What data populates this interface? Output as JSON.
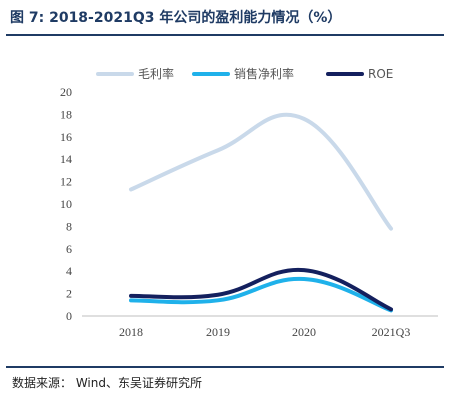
{
  "title": "图 7:  2018-2021Q3 年公司的盈利能力情况（%）",
  "source": "数据来源： Wind、东吴证券研究所",
  "colors": {
    "title": "#1f3b64",
    "gross_margin": "#c9d9ea",
    "net_margin": "#1fb1ea",
    "roe": "#14205e"
  },
  "chart_data": {
    "type": "line",
    "smooth": true,
    "categories": [
      "2018",
      "2019",
      "2020",
      "2021Q3"
    ],
    "ylim": [
      0,
      20
    ],
    "yticks": [
      0,
      2,
      4,
      6,
      8,
      10,
      12,
      14,
      16,
      18,
      20
    ],
    "grid": false,
    "legend": "top",
    "series": [
      {
        "name": "毛利率",
        "values": [
          11.3,
          14.8,
          17.6,
          7.8
        ],
        "color": "#c9d9ea"
      },
      {
        "name": "销售净利率",
        "values": [
          1.4,
          1.4,
          3.3,
          0.5
        ],
        "color": "#1fb1ea"
      },
      {
        "name": "ROE",
        "values": [
          1.8,
          1.9,
          4.1,
          0.6
        ],
        "color": "#14205e"
      }
    ]
  }
}
